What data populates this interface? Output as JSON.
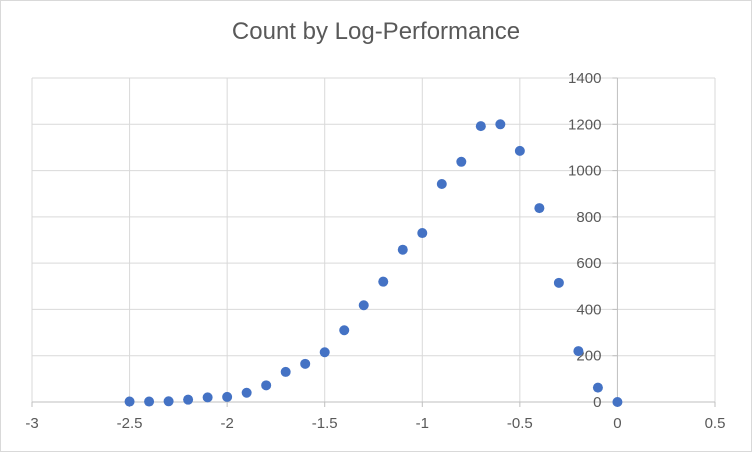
{
  "chart_data": {
    "type": "scatter",
    "title": "Count by Log-Performance",
    "xlabel": "",
    "ylabel": "",
    "xlim": [
      -3,
      0.5
    ],
    "ylim": [
      0,
      1400
    ],
    "x_ticks": [
      -3,
      -2.5,
      -2,
      -1.5,
      -1,
      -0.5,
      0,
      0.5
    ],
    "x_tick_labels": [
      "-3",
      "-2.5",
      "-2",
      "-1.5",
      "-1",
      "-0.5",
      "0",
      "0.5"
    ],
    "y_ticks": [
      0,
      200,
      400,
      600,
      800,
      1000,
      1200,
      1400
    ],
    "y_tick_labels": [
      "0",
      "200",
      "400",
      "600",
      "800",
      "1000",
      "1200",
      "1400"
    ],
    "grid": true,
    "legend": "none",
    "marker_color": "#4472c4",
    "series": [
      {
        "x": [
          -2.5,
          -2.4,
          -2.3,
          -2.2,
          -2.1,
          -2.0,
          -1.9,
          -1.8,
          -1.7,
          -1.6,
          -1.5,
          -1.4,
          -1.3,
          -1.2,
          -1.1,
          -1.0,
          -0.9,
          -0.8,
          -0.7,
          -0.6,
          -0.5,
          -0.4,
          -0.3,
          -0.2,
          -0.1,
          0.0
        ],
        "y": [
          2,
          2,
          3,
          10,
          20,
          22,
          40,
          72,
          130,
          165,
          215,
          310,
          418,
          520,
          658,
          730,
          942,
          1038,
          1192,
          1200,
          1085,
          838,
          515,
          220,
          62,
          0
        ]
      }
    ]
  }
}
